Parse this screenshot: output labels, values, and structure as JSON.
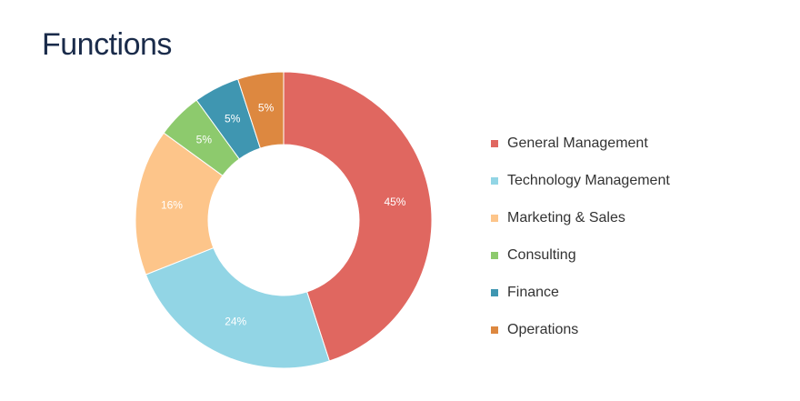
{
  "page": {
    "title": "Functions"
  },
  "chart_data": {
    "type": "pie",
    "title": "Functions",
    "donut": true,
    "legend_position": "right",
    "slice_label_format": "percent",
    "categories": [
      "General Management",
      "Technology Management",
      "Marketing & Sales",
      "Consulting",
      "Finance",
      "Operations"
    ],
    "values": [
      45,
      24,
      16,
      5,
      5,
      5
    ],
    "labels": [
      "45%",
      "24%",
      "16%",
      "5%",
      "5%",
      "5%"
    ],
    "colors": [
      "#e06760",
      "#92d5e5",
      "#fdc58a",
      "#8dca6d",
      "#3f96b1",
      "#dd8840"
    ]
  }
}
